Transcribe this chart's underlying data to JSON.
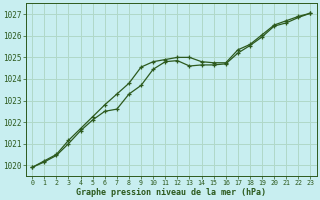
{
  "title": "Graphe pression niveau de la mer (hPa)",
  "background_color": "#c8eef0",
  "grid_color": "#b0d8c8",
  "line_color": "#2d5a1e",
  "xlim": [
    -0.5,
    23.5
  ],
  "ylim": [
    1019.5,
    1027.5
  ],
  "xticks": [
    0,
    1,
    2,
    3,
    4,
    5,
    6,
    7,
    8,
    9,
    10,
    11,
    12,
    13,
    14,
    15,
    16,
    17,
    18,
    19,
    20,
    21,
    22,
    23
  ],
  "yticks": [
    1020,
    1021,
    1022,
    1023,
    1024,
    1025,
    1026,
    1027
  ],
  "series1_x": [
    0,
    1,
    2,
    3,
    4,
    5,
    6,
    7,
    8,
    9,
    10,
    11,
    12,
    13,
    14,
    15,
    16,
    17,
    18,
    19,
    20,
    21,
    22,
    23
  ],
  "series1_y": [
    1019.9,
    1020.15,
    1020.45,
    1021.0,
    1021.6,
    1022.1,
    1022.5,
    1022.6,
    1023.3,
    1023.7,
    1024.45,
    1024.8,
    1024.85,
    1024.6,
    1024.65,
    1024.65,
    1024.7,
    1025.2,
    1025.55,
    1025.95,
    1026.45,
    1026.6,
    1026.85,
    1027.05
  ],
  "series2_x": [
    0,
    1,
    2,
    3,
    4,
    5,
    6,
    7,
    8,
    9,
    10,
    11,
    12,
    13,
    14,
    15,
    16,
    17,
    18,
    19,
    20,
    21,
    22,
    23
  ],
  "series2_y": [
    1019.9,
    1020.2,
    1020.5,
    1021.15,
    1021.7,
    1022.25,
    1022.8,
    1023.3,
    1023.8,
    1024.55,
    1024.8,
    1024.9,
    1025.0,
    1025.0,
    1024.8,
    1024.75,
    1024.75,
    1025.35,
    1025.6,
    1026.05,
    1026.5,
    1026.7,
    1026.9,
    1027.05
  ]
}
